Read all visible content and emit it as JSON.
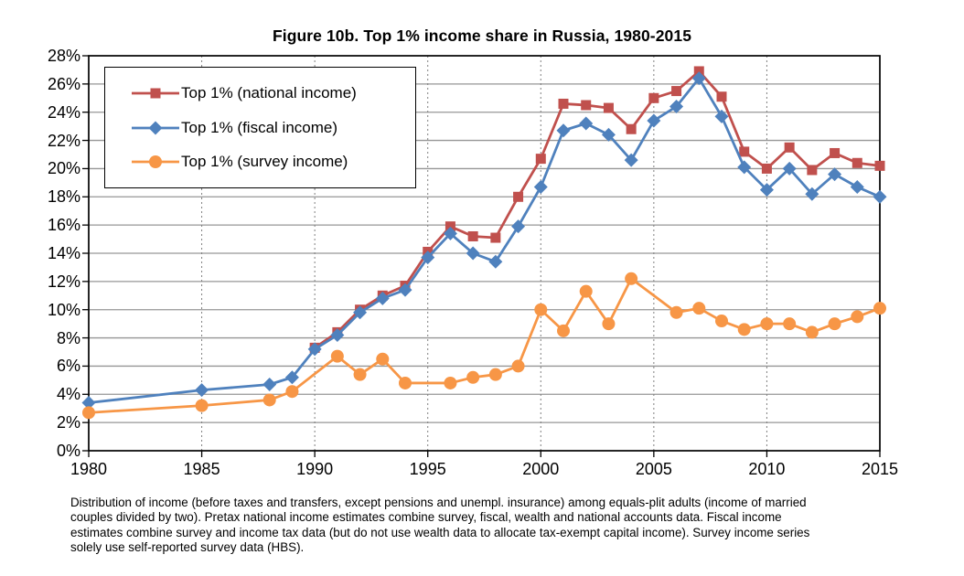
{
  "title": "Figure 10b. Top 1% income share in Russia, 1980-2015",
  "footnote": {
    "lines": [
      "Distribution of income (before taxes and transfers, except pensions and unempl. insurance) among equals-plit adults (income of married",
      "couples divided by two). Pretax national income estimates combine survey, fiscal, wealth and national accounts data. Fiscal income",
      "estimates combine survey and income tax data (but do not use wealth data to allocate tax-exempt capital income). Survey income series",
      "solely use self-reported survey data (HBS)."
    ]
  },
  "chart_data": {
    "type": "line",
    "title": "Figure 10b. Top 1% income share in Russia, 1980-2015",
    "xlabel": "",
    "ylabel": "",
    "xlim": [
      1980,
      2015
    ],
    "ylim": [
      0,
      28
    ],
    "grid": true,
    "legend_position": "top-left",
    "x_ticks": [
      {
        "value": 1980,
        "label": "1980"
      },
      {
        "value": 1985,
        "label": "1985"
      },
      {
        "value": 1990,
        "label": "1990"
      },
      {
        "value": 1995,
        "label": "1995"
      },
      {
        "value": 2000,
        "label": "2000"
      },
      {
        "value": 2005,
        "label": "2005"
      },
      {
        "value": 2010,
        "label": "2010"
      },
      {
        "value": 2015,
        "label": "2015"
      }
    ],
    "y_ticks": [
      {
        "value": 0,
        "label": "0%"
      },
      {
        "value": 2,
        "label": "2%"
      },
      {
        "value": 4,
        "label": "4%"
      },
      {
        "value": 6,
        "label": "6%"
      },
      {
        "value": 8,
        "label": "8%"
      },
      {
        "value": 10,
        "label": "10%"
      },
      {
        "value": 12,
        "label": "12%"
      },
      {
        "value": 14,
        "label": "14%"
      },
      {
        "value": 16,
        "label": "16%"
      },
      {
        "value": 18,
        "label": "18%"
      },
      {
        "value": 20,
        "label": "20%"
      },
      {
        "value": 22,
        "label": "22%"
      },
      {
        "value": 24,
        "label": "24%"
      },
      {
        "value": 26,
        "label": "26%"
      },
      {
        "value": 28,
        "label": "28%"
      }
    ],
    "series": [
      {
        "id": "national-income",
        "name": "Top 1% (national income)",
        "color": "#C0504D",
        "marker": "square",
        "points": [
          [
            1990,
            7.3
          ],
          [
            1991,
            8.4
          ],
          [
            1992,
            10.0
          ],
          [
            1993,
            11.0
          ],
          [
            1994,
            11.7
          ],
          [
            1995,
            14.1
          ],
          [
            1996,
            15.9
          ],
          [
            1997,
            15.2
          ],
          [
            1998,
            15.1
          ],
          [
            1999,
            18.0
          ],
          [
            2000,
            20.7
          ],
          [
            2001,
            24.6
          ],
          [
            2002,
            24.5
          ],
          [
            2003,
            24.3
          ],
          [
            2004,
            22.8
          ],
          [
            2005,
            25.0
          ],
          [
            2006,
            25.5
          ],
          [
            2007,
            26.9
          ],
          [
            2008,
            25.1
          ],
          [
            2009,
            21.2
          ],
          [
            2010,
            20.0
          ],
          [
            2011,
            21.5
          ],
          [
            2012,
            19.9
          ],
          [
            2013,
            21.1
          ],
          [
            2014,
            20.4
          ],
          [
            2015,
            20.2
          ]
        ]
      },
      {
        "id": "fiscal-income",
        "name": "Top 1% (fiscal income)",
        "color": "#4F81BD",
        "marker": "diamond",
        "points": [
          [
            1980,
            3.4
          ],
          [
            1985,
            4.3
          ],
          [
            1988,
            4.7
          ],
          [
            1989,
            5.2
          ],
          [
            1990,
            7.2
          ],
          [
            1991,
            8.2
          ],
          [
            1992,
            9.8
          ],
          [
            1993,
            10.8
          ],
          [
            1994,
            11.4
          ],
          [
            1995,
            13.7
          ],
          [
            1996,
            15.4
          ],
          [
            1997,
            14.0
          ],
          [
            1998,
            13.4
          ],
          [
            1999,
            15.9
          ],
          [
            2000,
            18.7
          ],
          [
            2001,
            22.7
          ],
          [
            2002,
            23.2
          ],
          [
            2003,
            22.4
          ],
          [
            2004,
            20.6
          ],
          [
            2005,
            23.4
          ],
          [
            2006,
            24.4
          ],
          [
            2007,
            26.4
          ],
          [
            2008,
            23.7
          ],
          [
            2009,
            20.1
          ],
          [
            2010,
            18.5
          ],
          [
            2011,
            20.0
          ],
          [
            2012,
            18.2
          ],
          [
            2013,
            19.6
          ],
          [
            2014,
            18.7
          ],
          [
            2015,
            18.0
          ]
        ]
      },
      {
        "id": "survey-income",
        "name": "Top 1% (survey income)",
        "color": "#F79646",
        "marker": "circle",
        "points": [
          [
            1980,
            2.7
          ],
          [
            1985,
            3.2
          ],
          [
            1988,
            3.6
          ],
          [
            1989,
            4.2
          ],
          [
            1991,
            6.7
          ],
          [
            1992,
            5.4
          ],
          [
            1993,
            6.5
          ],
          [
            1994,
            4.8
          ],
          [
            1996,
            4.8
          ],
          [
            1997,
            5.2
          ],
          [
            1998,
            5.4
          ],
          [
            1999,
            6.0
          ],
          [
            2000,
            10.0
          ],
          [
            2001,
            8.5
          ],
          [
            2002,
            11.3
          ],
          [
            2003,
            9.0
          ],
          [
            2004,
            12.2
          ],
          [
            2006,
            9.8
          ],
          [
            2007,
            10.1
          ],
          [
            2008,
            9.2
          ],
          [
            2009,
            8.6
          ],
          [
            2010,
            9.0
          ],
          [
            2011,
            9.0
          ],
          [
            2012,
            8.4
          ],
          [
            2013,
            9.0
          ],
          [
            2014,
            9.5
          ],
          [
            2015,
            10.1
          ]
        ]
      }
    ]
  }
}
